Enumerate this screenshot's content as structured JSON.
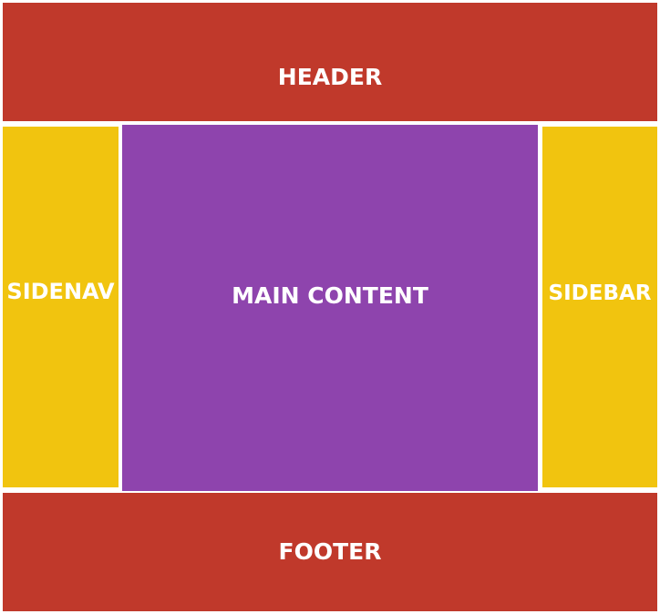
{
  "regions": {
    "header": {
      "label": "HEADER",
      "color": "#c0392b"
    },
    "sidenav": {
      "label": "SIDENAV",
      "color": "#f1c40f"
    },
    "main": {
      "label": "MAIN CONTENT",
      "color": "#8e44ad"
    },
    "sidebar": {
      "label": "SIDEBAR",
      "color": "#f1c40f"
    },
    "footer": {
      "label": "FOOTER",
      "color": "#c0392b"
    }
  },
  "background": "#ffffff"
}
